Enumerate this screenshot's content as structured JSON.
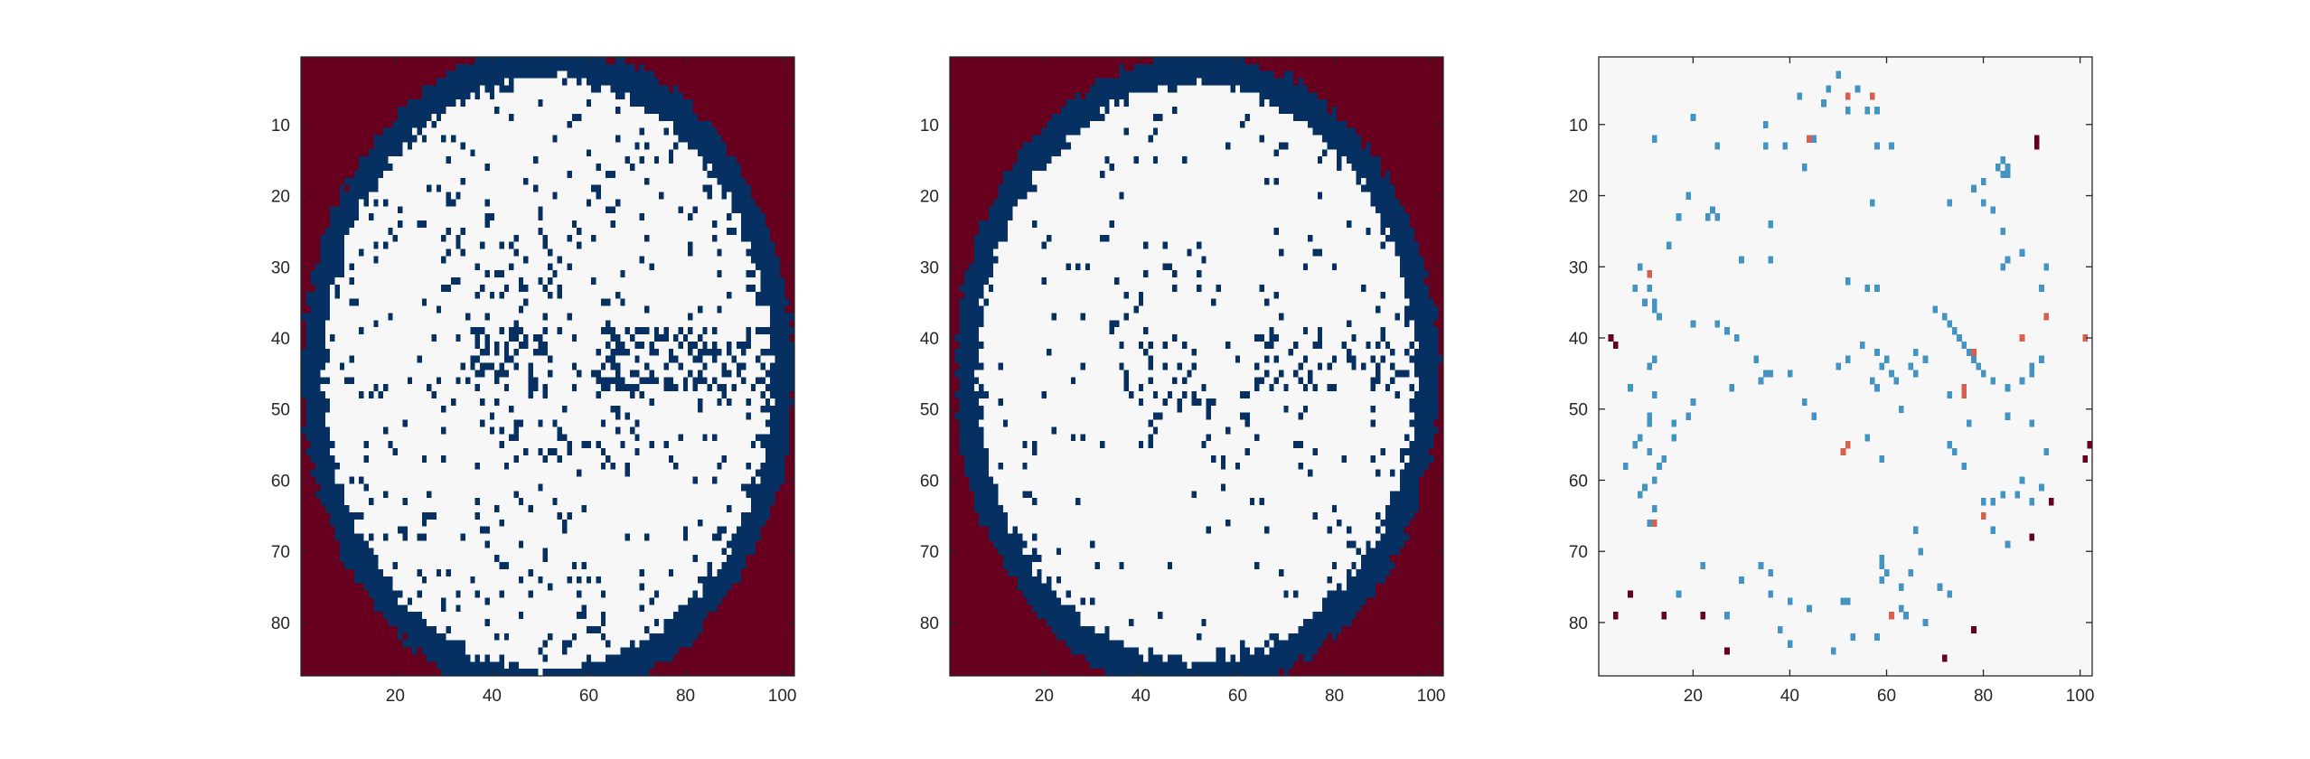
{
  "figure": {
    "background": "#ffffff",
    "colormap": {
      "-1": "#67001f",
      "0": "#053061",
      "1": "#f7f7f7",
      "2": "#4393c3",
      "3": "#d6604d"
    },
    "axis_color": "#262626"
  },
  "chart_data": [
    {
      "type": "heatmap",
      "panel": "left",
      "title": "",
      "xlabel": "",
      "ylabel": "",
      "xlim": [
        0.5,
        102.5
      ],
      "ylim": [
        0.5,
        87.5
      ],
      "y_direction": "reverse",
      "xticks": [
        20,
        40,
        60,
        80,
        100
      ],
      "yticks": [
        10,
        20,
        30,
        40,
        50,
        60,
        70,
        80
      ],
      "grid": false,
      "legend": "none",
      "description_of_pattern": "three-level image: dark red corners (-1), navy elliptical ring and speckles (0), white interior (1)",
      "ellipse": {
        "cx": 51.5,
        "cy": 45,
        "rx": 51,
        "ry": 46
      },
      "ring_width": 4.5,
      "speckle_density": 0.14
    },
    {
      "type": "heatmap",
      "panel": "middle",
      "title": "",
      "xlabel": "",
      "ylabel": "",
      "xlim": [
        0.5,
        102.5
      ],
      "ylim": [
        0.5,
        87.5
      ],
      "y_direction": "reverse",
      "xticks": [
        20,
        40,
        60,
        80,
        100
      ],
      "yticks": [
        10,
        20,
        30,
        40,
        50,
        60,
        70,
        80
      ],
      "grid": false,
      "legend": "none",
      "ellipse": {
        "cx": 51.5,
        "cy": 45,
        "rx": 50,
        "ry": 45
      },
      "ring_width": 4.5,
      "speckle_density": 0.07
    },
    {
      "type": "heatmap",
      "panel": "right",
      "title": "",
      "xlabel": "",
      "ylabel": "",
      "xlim": [
        0.5,
        102.5
      ],
      "ylim": [
        0.5,
        87.5
      ],
      "y_direction": "reverse",
      "xticks": [
        20,
        40,
        60,
        80,
        100
      ],
      "yticks": [
        10,
        20,
        30,
        40,
        50,
        60,
        70,
        80
      ],
      "grid": false,
      "legend": "none",
      "background_value": 1,
      "points_light_blue": [
        [
          50,
          3
        ],
        [
          48,
          5
        ],
        [
          54,
          5
        ],
        [
          47,
          7
        ],
        [
          52,
          8
        ],
        [
          56,
          8
        ],
        [
          58,
          8
        ],
        [
          42,
          6
        ],
        [
          35,
          10
        ],
        [
          39,
          13
        ],
        [
          20,
          9
        ],
        [
          12,
          12
        ],
        [
          25,
          13
        ],
        [
          35,
          13
        ],
        [
          43,
          16
        ],
        [
          45,
          12
        ],
        [
          58,
          13
        ],
        [
          61,
          13
        ],
        [
          84,
          15
        ],
        [
          83,
          16
        ],
        [
          85,
          16
        ],
        [
          84,
          17
        ],
        [
          85,
          17
        ],
        [
          80,
          18
        ],
        [
          78,
          19
        ],
        [
          73,
          21
        ],
        [
          80,
          21
        ],
        [
          19,
          20
        ],
        [
          17,
          23
        ],
        [
          24,
          22
        ],
        [
          25,
          23
        ],
        [
          23,
          23
        ],
        [
          36,
          24
        ],
        [
          57,
          21
        ],
        [
          82,
          22
        ],
        [
          84,
          25
        ],
        [
          85,
          29
        ],
        [
          84,
          30
        ],
        [
          88,
          28
        ],
        [
          93,
          30
        ],
        [
          15,
          27
        ],
        [
          30,
          29
        ],
        [
          36,
          29
        ],
        [
          9,
          30
        ],
        [
          11,
          33
        ],
        [
          8,
          33
        ],
        [
          10,
          35
        ],
        [
          12,
          35
        ],
        [
          13,
          37
        ],
        [
          12,
          36
        ],
        [
          52,
          32
        ],
        [
          56,
          33
        ],
        [
          58,
          33
        ],
        [
          92,
          33
        ],
        [
          70,
          36
        ],
        [
          72,
          37
        ],
        [
          73,
          38
        ],
        [
          74,
          39
        ],
        [
          75,
          40
        ],
        [
          76,
          41
        ],
        [
          77,
          42
        ],
        [
          78,
          43
        ],
        [
          79,
          44
        ],
        [
          80,
          45
        ],
        [
          82,
          46
        ],
        [
          85,
          47
        ],
        [
          88,
          46
        ],
        [
          90,
          45
        ],
        [
          90,
          44
        ],
        [
          92,
          43
        ],
        [
          20,
          38
        ],
        [
          25,
          38
        ],
        [
          27,
          39
        ],
        [
          29,
          40
        ],
        [
          33,
          43
        ],
        [
          35,
          45
        ],
        [
          34,
          46
        ],
        [
          36,
          45
        ],
        [
          40,
          45
        ],
        [
          50,
          44
        ],
        [
          52,
          43
        ],
        [
          55,
          41
        ],
        [
          58,
          42
        ],
        [
          60,
          43
        ],
        [
          59,
          44
        ],
        [
          61,
          45
        ],
        [
          62,
          46
        ],
        [
          57,
          46
        ],
        [
          58,
          47
        ],
        [
          45,
          51
        ],
        [
          43,
          49
        ],
        [
          56,
          54
        ],
        [
          59,
          57
        ],
        [
          66,
          45
        ],
        [
          66,
          42
        ],
        [
          65,
          44
        ],
        [
          68,
          43
        ],
        [
          73,
          48
        ],
        [
          77,
          52
        ],
        [
          73,
          55
        ],
        [
          63,
          50
        ],
        [
          85,
          51
        ],
        [
          90,
          52
        ],
        [
          93,
          56
        ],
        [
          92,
          61
        ],
        [
          88,
          60
        ],
        [
          87,
          62
        ],
        [
          84,
          62
        ],
        [
          82,
          63
        ],
        [
          80,
          63
        ],
        [
          90,
          63
        ],
        [
          82,
          67
        ],
        [
          85,
          69
        ],
        [
          76,
          58
        ],
        [
          74,
          56
        ],
        [
          12,
          48
        ],
        [
          11,
          51
        ],
        [
          11,
          52
        ],
        [
          7,
          47
        ],
        [
          11,
          44
        ],
        [
          12,
          43
        ],
        [
          8,
          55
        ],
        [
          9,
          54
        ],
        [
          11,
          56
        ],
        [
          14,
          57
        ],
        [
          16,
          54
        ],
        [
          16,
          52
        ],
        [
          19,
          51
        ],
        [
          20,
          49
        ],
        [
          28,
          47
        ],
        [
          6,
          58
        ],
        [
          13,
          58
        ],
        [
          12,
          60
        ],
        [
          12,
          64
        ],
        [
          11,
          66
        ],
        [
          9,
          62
        ],
        [
          10,
          61
        ],
        [
          22,
          72
        ],
        [
          30,
          74
        ],
        [
          34,
          72
        ],
        [
          36,
          73
        ],
        [
          36,
          76
        ],
        [
          40,
          77
        ],
        [
          44,
          78
        ],
        [
          51,
          77
        ],
        [
          52,
          77
        ],
        [
          63,
          78
        ],
        [
          64,
          79
        ],
        [
          68,
          80
        ],
        [
          59,
          74
        ],
        [
          59,
          72
        ],
        [
          59,
          71
        ],
        [
          60,
          73
        ],
        [
          65,
          73
        ],
        [
          67,
          70
        ],
        [
          66,
          67
        ],
        [
          71,
          75
        ],
        [
          63,
          75
        ],
        [
          73,
          76
        ],
        [
          58,
          82
        ],
        [
          53,
          82
        ],
        [
          49,
          84
        ],
        [
          38,
          81
        ],
        [
          40,
          83
        ],
        [
          27,
          79
        ],
        [
          17,
          76
        ]
      ],
      "points_orange": [
        [
          11,
          31
        ],
        [
          44,
          12
        ],
        [
          52,
          6
        ],
        [
          57,
          6
        ],
        [
          78,
          42
        ],
        [
          76,
          47
        ],
        [
          76,
          48
        ],
        [
          80,
          65
        ],
        [
          61,
          79
        ],
        [
          51,
          56
        ],
        [
          52,
          55
        ],
        [
          12,
          66
        ],
        [
          93,
          37
        ],
        [
          101,
          40
        ],
        [
          88,
          40
        ]
      ],
      "points_dark_red": [
        [
          91,
          12
        ],
        [
          91,
          13
        ],
        [
          102,
          55
        ],
        [
          101,
          57
        ],
        [
          94,
          63
        ],
        [
          90,
          68
        ],
        [
          3,
          40
        ],
        [
          4,
          41
        ],
        [
          7,
          76
        ],
        [
          14,
          79
        ],
        [
          22,
          79
        ],
        [
          78,
          81
        ],
        [
          72,
          85
        ],
        [
          27,
          84
        ],
        [
          4,
          79
        ]
      ]
    }
  ]
}
